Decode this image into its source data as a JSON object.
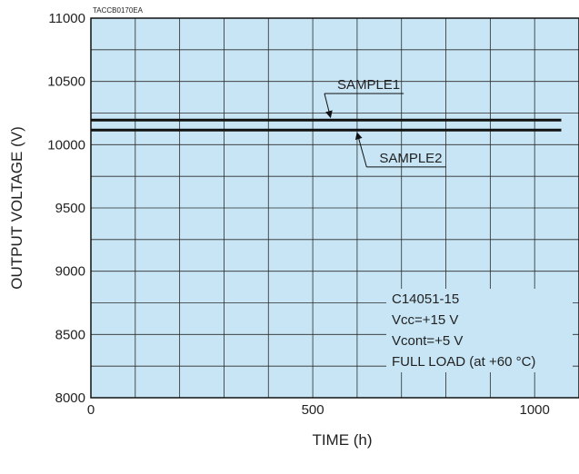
{
  "colors": {
    "plot_bg": "#c7e5f5",
    "grid": "#2b2b2b",
    "series": "#111111",
    "frame": "#111111"
  },
  "chart_data": {
    "type": "line",
    "figure_code": "TACCB0170EA",
    "xlabel": "TIME (h)",
    "ylabel": "OUTPUT VOLTAGE (V)",
    "xlim": [
      0,
      1100
    ],
    "ylim": [
      8000,
      11000
    ],
    "x_ticks": [
      "0",
      "500",
      "1000"
    ],
    "y_ticks": [
      "8000",
      "8500",
      "9000",
      "9500",
      "10000",
      "10500",
      "11000"
    ],
    "x_ticks_values": [
      0,
      500,
      1000
    ],
    "y_ticks_values": [
      8000,
      8500,
      9000,
      9500,
      10000,
      10500,
      11000
    ],
    "x_grid_step": 100,
    "y_grid_step": 250,
    "grid": true,
    "series": [
      {
        "name": "SAMPLE1",
        "x": [
          0,
          1060
        ],
        "y": [
          10195,
          10195
        ],
        "label_at": {
          "x": 555,
          "y": 10440
        },
        "arrow_to": {
          "x": 540,
          "y": 10195
        }
      },
      {
        "name": "SAMPLE2",
        "x": [
          0,
          1060
        ],
        "y": [
          10115,
          10115
        ],
        "label_at": {
          "x": 650,
          "y": 9860
        },
        "arrow_to": {
          "x": 600,
          "y": 10115
        }
      }
    ],
    "notes": [
      "C14051-15",
      "Vcc=+15 V",
      "Vcont=+5 V",
      "FULL LOAD (at +60 °C)"
    ]
  }
}
